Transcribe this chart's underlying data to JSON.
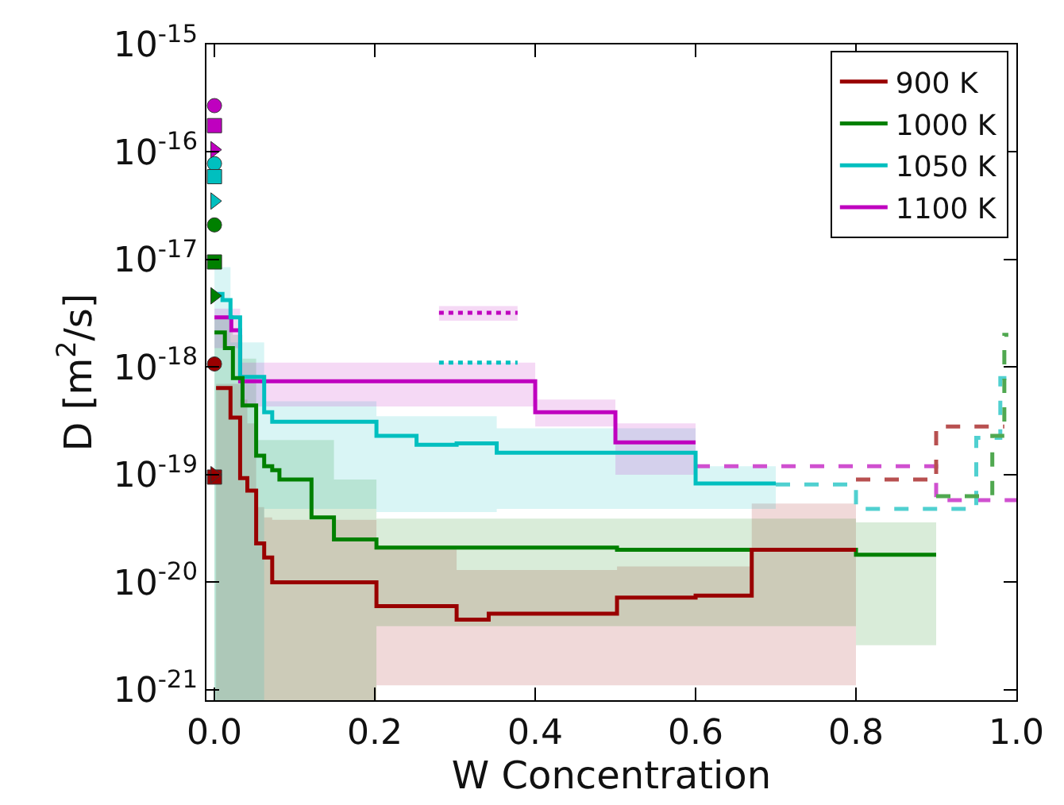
{
  "chart_data": {
    "type": "step",
    "xlabel": "W Concentration",
    "ylabel": "D [m$^{2}$/s]",
    "log": "y",
    "grid": false,
    "legend": "top right",
    "xlim": [
      -0.01,
      1.0
    ],
    "xticks": [
      {
        "value": 0,
        "label": "0.0"
      },
      {
        "value": 0.2,
        "label": "0.2"
      },
      {
        "value": 0.4,
        "label": "0.4"
      },
      {
        "value": 0.6,
        "label": "0.6"
      },
      {
        "value": 0.8,
        "label": "0.8"
      },
      {
        "value": 1.0,
        "label": "1.0"
      }
    ],
    "ylim": [
      8e-22,
      1e-15
    ],
    "yticks": [
      {
        "value": 1e-21,
        "label": "10$^{-21}$"
      },
      {
        "value": 1e-20,
        "label": "10$^{-20}$"
      },
      {
        "value": 1e-19,
        "label": "10$^{-19}$"
      },
      {
        "value": 1e-18,
        "label": "10$^{-18}$"
      },
      {
        "value": 1e-17,
        "label": "10$^{-17}$"
      },
      {
        "value": 1e-16,
        "label": "10$^{-16}$"
      },
      {
        "value": 1e-15,
        "label": "10$^{-15}$"
      }
    ],
    "series": [
      {
        "name": "900 K",
        "color": "#990000",
        "line_style": "solid",
        "x": [
          0.002,
          0.02,
          0.032,
          0.041,
          0.052,
          0.062,
          0.072,
          0.202,
          0.302,
          0.342,
          0.502,
          0.6,
          0.67,
          0.8
        ],
        "values": [
          6.4e-19,
          3.4e-19,
          9.3e-20,
          7.1e-20,
          2.3e-20,
          1.7e-20,
          1e-20,
          6e-21,
          4.5e-21,
          5.1e-21,
          7.2e-21,
          7.5e-21,
          2e-20,
          2e-20
        ],
        "upper": [
          7e-19,
          7e-19,
          5e-19,
          3e-19,
          5e-20,
          4e-20,
          3.8e-20,
          2.1e-20,
          1.3e-20,
          1.3e-20,
          1.4e-20,
          1.4e-20,
          5.4e-20,
          5.4e-20
        ],
        "lower": [
          8e-22,
          8e-22,
          8e-22,
          8e-22,
          8e-22,
          8e-22,
          8e-22,
          1.1e-21,
          1.1e-21,
          1.1e-21,
          1.1e-21,
          1.1e-21,
          1.1e-21,
          1.1e-21
        ]
      },
      {
        "name": "1000 K",
        "color": "#008000",
        "line_style": "solid",
        "x": [
          0.0,
          0.013,
          0.023,
          0.035,
          0.052,
          0.062,
          0.072,
          0.081,
          0.121,
          0.149,
          0.202,
          0.502,
          0.8,
          0.9
        ],
        "values": [
          2.1e-18,
          1.5e-18,
          7.9e-19,
          4.4e-19,
          1.5e-19,
          1.2e-19,
          1.1e-19,
          9e-20,
          4e-20,
          2.5e-20,
          2.1e-20,
          2e-20,
          1.8e-20,
          1.8e-20
        ],
        "upper": [
          3e-18,
          3e-18,
          2e-18,
          1.2e-18,
          2.1e-19,
          2.1e-19,
          2.1e-19,
          2.1e-19,
          2.1e-19,
          9e-20,
          3.9e-20,
          3.9e-20,
          3.6e-20,
          3.6e-20
        ],
        "lower": [
          8e-22,
          8e-22,
          8e-22,
          8e-22,
          8e-22,
          8e-22,
          8e-22,
          8e-22,
          8e-22,
          8e-22,
          3.9e-21,
          3.9e-21,
          2.6e-21,
          2.6e-21
        ]
      },
      {
        "name": "1050 K",
        "color": "#00bfbf",
        "line_style": "solid",
        "x": [
          0.0,
          0.01,
          0.02,
          0.032,
          0.062,
          0.072,
          0.202,
          0.252,
          0.302,
          0.352,
          0.6,
          0.7
        ],
        "values": [
          4.8e-18,
          4.2e-18,
          2.9e-18,
          8.1e-19,
          3.8e-19,
          3.1e-19,
          2.3e-19,
          1.9e-19,
          1.95e-19,
          1.6e-19,
          8.3e-20,
          8.3e-20
        ],
        "upper": [
          8.5e-18,
          8.5e-18,
          1.7e-18,
          1.7e-18,
          4.8e-19,
          4.8e-19,
          3.5e-19,
          3.5e-19,
          3.5e-19,
          2.7e-19,
          1.2e-19,
          1.2e-19
        ],
        "lower": [
          8e-22,
          8e-22,
          8e-22,
          8e-22,
          4.8e-20,
          4.8e-20,
          4.5e-20,
          4.5e-20,
          4.5e-20,
          4.8e-20,
          4.8e-20,
          4.8e-20
        ]
      },
      {
        "name": "1100 K",
        "color": "#bf00bf",
        "line_style": "solid",
        "x": [
          0.0,
          0.021,
          0.032,
          0.4,
          0.5,
          0.6
        ],
        "values": [
          2.9e-18,
          2.2e-18,
          7.4e-19,
          3.8e-19,
          2e-19,
          2e-19
        ],
        "upper": [
          3.5e-18,
          3.5e-18,
          1.1e-18,
          5e-19,
          3e-19,
          3e-19
        ],
        "lower": [
          1.5e-18,
          1.5e-18,
          4.3e-19,
          2.8e-19,
          1e-19,
          1e-19
        ]
      },
      {
        "color": "#b85050",
        "line_style": "dashed",
        "x": [
          0.8,
          0.9,
          0.985
        ],
        "values": [
          9e-20,
          2.8e-19,
          2.8e-19
        ]
      },
      {
        "color": "#50a850",
        "line_style": "dashed",
        "x": [
          0.9,
          0.97,
          0.985,
          0.99
        ],
        "values": [
          6.3e-20,
          2.3e-19,
          2e-18,
          2e-18
        ]
      },
      {
        "color": "#50d0d0",
        "line_style": "dashed",
        "x": [
          0.7,
          0.8,
          0.95,
          0.98,
          1.0
        ],
        "values": [
          8.1e-20,
          4.8e-20,
          2.2e-19,
          7.9e-19,
          7.9e-19
        ]
      },
      {
        "color": "#d050d0",
        "line_style": "dashed",
        "x": [
          0.6,
          0.9,
          1.0
        ],
        "values": [
          1.2e-19,
          5.8e-20,
          5.8e-20
        ]
      },
      {
        "type": "line",
        "color": "#bf00bf",
        "line_style": "dotted",
        "x": [
          0.28,
          0.378
        ],
        "values": [
          3.2e-18,
          3.2e-18
        ],
        "upper": [
          3.7e-18,
          3.7e-18
        ],
        "lower": [
          2.7e-18,
          2.7e-18
        ]
      },
      {
        "type": "line",
        "color": "#00bfbf",
        "line_style": "dotted",
        "x": [
          0.28,
          0.378
        ],
        "values": [
          1.1e-18,
          1.1e-18
        ]
      },
      {
        "type": "scatter",
        "marker": "circle",
        "x": [
          0,
          0,
          0,
          0
        ],
        "values": [
          1.07e-18,
          2.1e-17,
          7.8e-17,
          2.7e-16
        ],
        "colors": [
          "#990000",
          "#008000",
          "#00bfbf",
          "#bf00bf"
        ]
      },
      {
        "type": "scatter",
        "marker": "square",
        "x": [
          0,
          0,
          0,
          0
        ],
        "values": [
          9.5e-20,
          9.5e-18,
          5.9e-17,
          1.76e-16
        ],
        "colors": [
          "#990000",
          "#008000",
          "#00bfbf",
          "#bf00bf"
        ]
      },
      {
        "type": "scatter",
        "marker": "triangle",
        "x": [
          0,
          0,
          0,
          0
        ],
        "values": [
          1e-19,
          4.6e-18,
          3.5e-17,
          1.05e-16
        ],
        "colors": [
          "#990000",
          "#008000",
          "#00bfbf",
          "#bf00bf"
        ]
      }
    ]
  }
}
